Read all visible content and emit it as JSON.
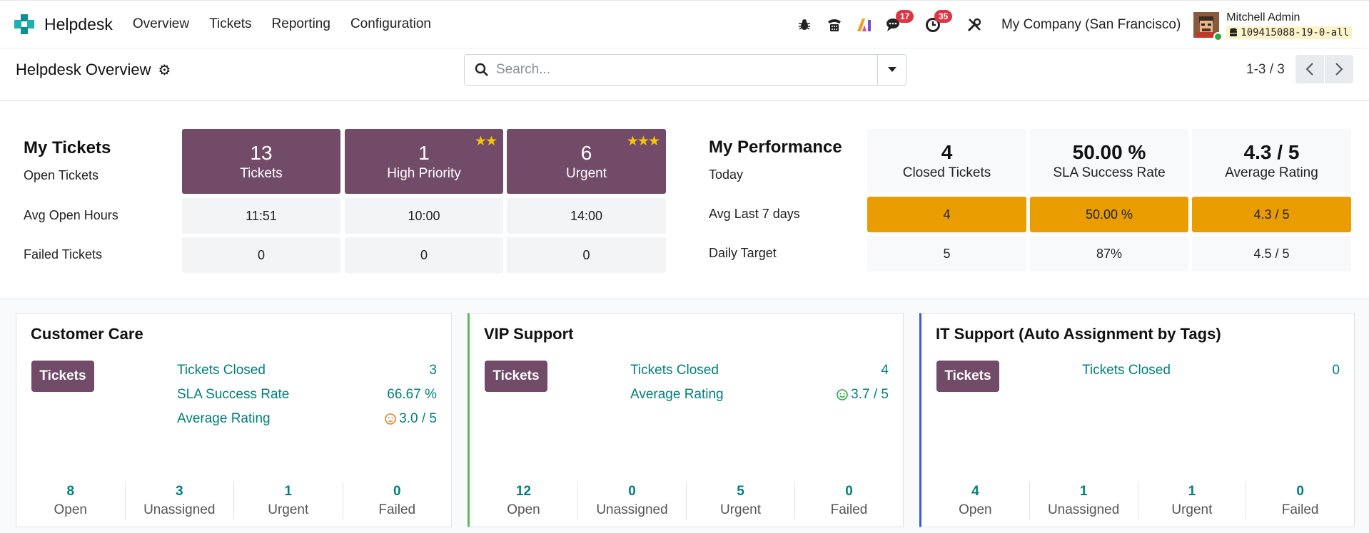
{
  "nav": {
    "app_name": "Helpdesk",
    "menu": [
      "Overview",
      "Tickets",
      "Reporting",
      "Configuration"
    ],
    "badges": {
      "messages": "17",
      "activities": "35"
    },
    "company": "My Company (San Francisco)",
    "user_name": "Mitchell Admin",
    "db_name": "109415088-19-0-all",
    "icons": [
      "bug-icon",
      "phone-icon",
      "ai-icon",
      "messages-icon",
      "activity-clock-icon",
      "tools-icon"
    ]
  },
  "control": {
    "title": "Helpdesk Overview",
    "search_placeholder": "Search...",
    "pager": "1-3 / 3"
  },
  "my_tickets": {
    "heading": "My Tickets",
    "row_labels": [
      "Open Tickets",
      "Avg Open Hours",
      "Failed Tickets"
    ],
    "columns": [
      {
        "count": "13",
        "label": "Tickets",
        "stars": "",
        "avg_hours": "11:51",
        "failed": "0"
      },
      {
        "count": "1",
        "label": "High Priority",
        "stars": "★★",
        "avg_hours": "10:00",
        "failed": "0"
      },
      {
        "count": "6",
        "label": "Urgent",
        "stars": "★★★",
        "avg_hours": "14:00",
        "failed": "0"
      }
    ]
  },
  "my_performance": {
    "heading": "My Performance",
    "row_labels": [
      "Today",
      "Avg Last 7 days",
      "Daily Target"
    ],
    "columns": [
      {
        "value": "4",
        "label": "Closed Tickets",
        "avg7": "4",
        "target": "5"
      },
      {
        "value": "50.00 %",
        "label": "SLA Success Rate",
        "avg7": "50.00 %",
        "target": "87%"
      },
      {
        "value": "4.3 / 5",
        "label": "Average Rating",
        "avg7": "4.3 / 5",
        "target": "4.5 / 5"
      }
    ]
  },
  "teams": [
    {
      "name": "Customer Care",
      "accent": "#dee2e6",
      "button": "Tickets",
      "metrics": [
        {
          "label": "Tickets Closed",
          "value": "3",
          "face": ""
        },
        {
          "label": "SLA Success Rate",
          "value": "66.67 %",
          "face": ""
        },
        {
          "label": "Average Rating",
          "value": "3.0 / 5",
          "face": "neutral"
        }
      ],
      "footer": [
        {
          "num": "8",
          "label": "Open"
        },
        {
          "num": "3",
          "label": "Unassigned"
        },
        {
          "num": "1",
          "label": "Urgent"
        },
        {
          "num": "0",
          "label": "Failed"
        }
      ]
    },
    {
      "name": "VIP Support",
      "accent": "#5cb85c",
      "button": "Tickets",
      "metrics": [
        {
          "label": "Tickets Closed",
          "value": "4",
          "face": ""
        },
        {
          "label": "Average Rating",
          "value": "3.7 / 5",
          "face": "happy"
        }
      ],
      "footer": [
        {
          "num": "12",
          "label": "Open"
        },
        {
          "num": "0",
          "label": "Unassigned"
        },
        {
          "num": "5",
          "label": "Urgent"
        },
        {
          "num": "0",
          "label": "Failed"
        }
      ]
    },
    {
      "name": "IT Support (Auto Assignment by Tags)",
      "accent": "#3b5bdb",
      "button": "Tickets",
      "metrics": [
        {
          "label": "Tickets Closed",
          "value": "0",
          "face": ""
        }
      ],
      "footer": [
        {
          "num": "4",
          "label": "Open"
        },
        {
          "num": "1",
          "label": "Unassigned"
        },
        {
          "num": "1",
          "label": "Urgent"
        },
        {
          "num": "0",
          "label": "Failed"
        }
      ]
    }
  ]
}
